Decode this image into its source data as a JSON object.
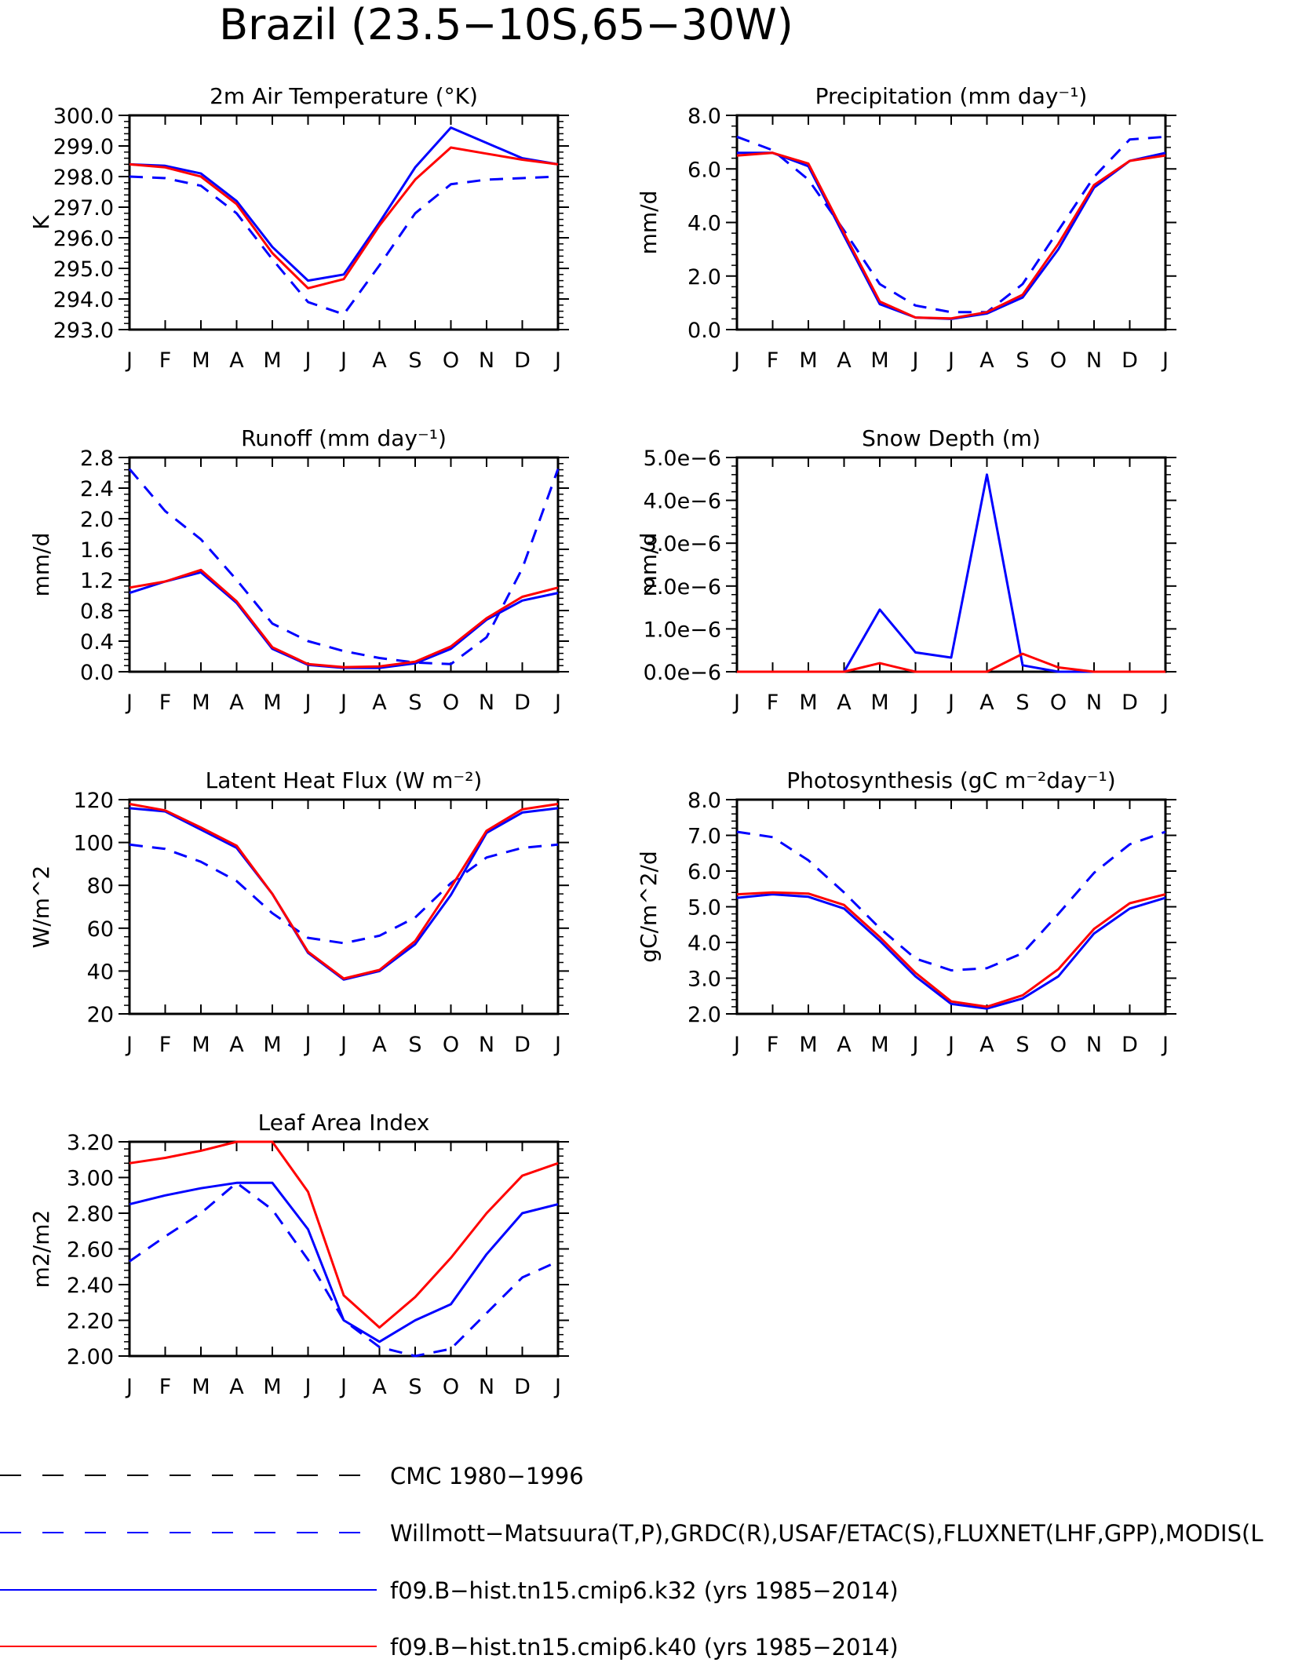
{
  "figure": {
    "title": "Brazil (23.5−10S,65−30W)"
  },
  "colors": {
    "obs": "#0000ff",
    "k32": "#0000ff",
    "k40": "#ff0000",
    "cmc": "#000000",
    "axis": "#000000"
  },
  "legend": [
    {
      "label": "CMC 1980−1996",
      "color": "#000000",
      "dash": true
    },
    {
      "label": "Willmott−Matsuura(T,P),GRDC(R),USAF/ETAC(S),FLUXNET(LHF,GPP),MODIS(L",
      "color": "#0000ff",
      "dash": true
    },
    {
      "label": "f09.B−hist.tn15.cmip6.k32 (yrs 1985−2014)",
      "color": "#0000ff",
      "dash": false
    },
    {
      "label": "f09.B−hist.tn15.cmip6.k40 (yrs 1985−2014)",
      "color": "#ff0000",
      "dash": false
    }
  ],
  "chart_data": [
    {
      "type": "line",
      "title": "2m Air Temperature (°K)",
      "ylabel": "K",
      "x": [
        "J",
        "F",
        "M",
        "A",
        "M",
        "J",
        "J",
        "A",
        "S",
        "O",
        "N",
        "D",
        "J"
      ],
      "ylim": [
        293.0,
        300.0
      ],
      "yticks": [
        "293.0",
        "294.0",
        "295.0",
        "296.0",
        "297.0",
        "298.0",
        "299.0",
        "300.0"
      ],
      "series": [
        {
          "key": "obs",
          "values": [
            298.0,
            297.95,
            297.7,
            296.8,
            295.3,
            293.9,
            293.5,
            295.1,
            296.8,
            297.75,
            297.9,
            297.95,
            298.0
          ]
        },
        {
          "key": "k32",
          "values": [
            298.4,
            298.35,
            298.1,
            297.2,
            295.7,
            294.6,
            294.8,
            296.5,
            298.3,
            299.6,
            299.1,
            298.6,
            298.4
          ]
        },
        {
          "key": "k40",
          "values": [
            298.4,
            298.3,
            298.0,
            297.1,
            295.5,
            294.35,
            294.65,
            296.4,
            297.9,
            298.95,
            298.75,
            298.55,
            298.4
          ]
        }
      ]
    },
    {
      "type": "line",
      "title": "Precipitation (mm day⁻¹)",
      "ylabel": "mm/d",
      "x": [
        "J",
        "F",
        "M",
        "A",
        "M",
        "J",
        "J",
        "A",
        "S",
        "O",
        "N",
        "D",
        "J"
      ],
      "ylim": [
        0.0,
        8.0
      ],
      "yticks": [
        "0.0",
        "2.0",
        "4.0",
        "6.0",
        "8.0"
      ],
      "series": [
        {
          "key": "obs",
          "values": [
            7.2,
            6.7,
            5.6,
            3.7,
            1.7,
            0.9,
            0.65,
            0.65,
            1.7,
            3.7,
            5.7,
            7.1,
            7.2
          ]
        },
        {
          "key": "k32",
          "values": [
            6.6,
            6.6,
            6.1,
            3.5,
            0.95,
            0.45,
            0.4,
            0.6,
            1.2,
            3.0,
            5.3,
            6.3,
            6.6
          ]
        },
        {
          "key": "k40",
          "values": [
            6.5,
            6.6,
            6.2,
            3.6,
            1.05,
            0.45,
            0.42,
            0.65,
            1.3,
            3.2,
            5.4,
            6.3,
            6.5
          ]
        }
      ]
    },
    {
      "type": "line",
      "title": "Runoff (mm day⁻¹)",
      "ylabel": "mm/d",
      "x": [
        "J",
        "F",
        "M",
        "A",
        "M",
        "J",
        "J",
        "A",
        "S",
        "O",
        "N",
        "D",
        "J"
      ],
      "ylim": [
        0.0,
        2.8
      ],
      "yticks": [
        "0.0",
        "0.4",
        "0.8",
        "1.2",
        "1.6",
        "2.0",
        "2.4",
        "2.8"
      ],
      "series": [
        {
          "key": "obs",
          "values": [
            2.65,
            2.1,
            1.73,
            1.2,
            0.63,
            0.4,
            0.27,
            0.18,
            0.12,
            0.1,
            0.45,
            1.35,
            2.65
          ]
        },
        {
          "key": "k32",
          "values": [
            1.03,
            1.18,
            1.3,
            0.9,
            0.3,
            0.09,
            0.05,
            0.05,
            0.11,
            0.3,
            0.68,
            0.93,
            1.03
          ]
        },
        {
          "key": "k40",
          "values": [
            1.1,
            1.18,
            1.33,
            0.92,
            0.32,
            0.1,
            0.06,
            0.07,
            0.13,
            0.33,
            0.7,
            0.98,
            1.1
          ]
        }
      ]
    },
    {
      "type": "line",
      "title": "Snow Depth (m)",
      "ylabel": "mm/d",
      "x": [
        "J",
        "F",
        "M",
        "A",
        "M",
        "J",
        "J",
        "A",
        "S",
        "O",
        "N",
        "D",
        "J"
      ],
      "ylim": [
        0.0,
        5e-06
      ],
      "yticks": [
        "0.0e−6",
        "1.0e−6",
        "2.0e−6",
        "3.0e−6",
        "4.0e−6",
        "5.0e−6"
      ],
      "series": [
        {
          "key": "k32",
          "values": [
            0,
            0,
            0,
            0,
            1.45e-06,
            4.5e-07,
            3.3e-07,
            4.6e-06,
            1.5e-07,
            0,
            0,
            0,
            0
          ]
        },
        {
          "key": "k40",
          "values": [
            0,
            0,
            0,
            0,
            2e-07,
            0,
            0,
            0,
            4.2e-07,
            1e-07,
            0,
            0,
            0
          ]
        }
      ]
    },
    {
      "type": "line",
      "title": "Latent Heat Flux (W m⁻²)",
      "ylabel": "W/m^2",
      "x": [
        "J",
        "F",
        "M",
        "A",
        "M",
        "J",
        "J",
        "A",
        "S",
        "O",
        "N",
        "D",
        "J"
      ],
      "ylim": [
        20,
        120
      ],
      "yticks": [
        "20",
        "40",
        "60",
        "80",
        "100",
        "120"
      ],
      "series": [
        {
          "key": "obs",
          "values": [
            99,
            97,
            91,
            82,
            67,
            55.5,
            53,
            56.5,
            65,
            81,
            93,
            97.5,
            99
          ]
        },
        {
          "key": "k32",
          "values": [
            116,
            114.5,
            106,
            97.5,
            76,
            48.5,
            36,
            40,
            52.5,
            75.5,
            104.5,
            114,
            116
          ]
        },
        {
          "key": "k40",
          "values": [
            118,
            115,
            107,
            98.5,
            76,
            49,
            36.5,
            40.5,
            54,
            79,
            105.5,
            115.5,
            118
          ]
        }
      ]
    },
    {
      "type": "line",
      "title": "Photosynthesis (gC m⁻²day⁻¹)",
      "ylabel": "gC/m^2/d",
      "x": [
        "J",
        "F",
        "M",
        "A",
        "M",
        "J",
        "J",
        "A",
        "S",
        "O",
        "N",
        "D",
        "J"
      ],
      "ylim": [
        2.0,
        8.0
      ],
      "yticks": [
        "2.0",
        "3.0",
        "4.0",
        "5.0",
        "6.0",
        "7.0",
        "8.0"
      ],
      "series": [
        {
          "key": "obs",
          "values": [
            7.1,
            6.95,
            6.3,
            5.4,
            4.4,
            3.55,
            3.22,
            3.28,
            3.7,
            4.8,
            5.95,
            6.75,
            7.1
          ]
        },
        {
          "key": "k32",
          "values": [
            5.25,
            5.35,
            5.28,
            4.95,
            4.05,
            3.05,
            2.28,
            2.15,
            2.43,
            3.05,
            4.25,
            4.95,
            5.25
          ]
        },
        {
          "key": "k40",
          "values": [
            5.35,
            5.4,
            5.37,
            5.05,
            4.15,
            3.15,
            2.35,
            2.2,
            2.52,
            3.25,
            4.38,
            5.1,
            5.35
          ]
        }
      ]
    },
    {
      "type": "line",
      "title": "Leaf Area Index",
      "ylabel": "m2/m2",
      "x": [
        "J",
        "F",
        "M",
        "A",
        "M",
        "J",
        "J",
        "A",
        "S",
        "O",
        "N",
        "D",
        "J"
      ],
      "ylim": [
        2.0,
        3.2
      ],
      "yticks": [
        "2.00",
        "2.20",
        "2.40",
        "2.60",
        "2.80",
        "3.00",
        "3.20"
      ],
      "series": [
        {
          "key": "obs",
          "values": [
            2.53,
            2.67,
            2.8,
            2.97,
            2.82,
            2.54,
            2.2,
            2.05,
            2.0,
            2.04,
            2.24,
            2.44,
            2.53
          ]
        },
        {
          "key": "k32",
          "values": [
            2.85,
            2.9,
            2.94,
            2.97,
            2.97,
            2.71,
            2.2,
            2.08,
            2.2,
            2.29,
            2.57,
            2.8,
            2.85
          ]
        },
        {
          "key": "k40",
          "values": [
            3.08,
            3.11,
            3.15,
            3.2,
            3.2,
            2.92,
            2.34,
            2.16,
            2.33,
            2.55,
            2.8,
            3.01,
            3.08
          ]
        }
      ]
    }
  ]
}
